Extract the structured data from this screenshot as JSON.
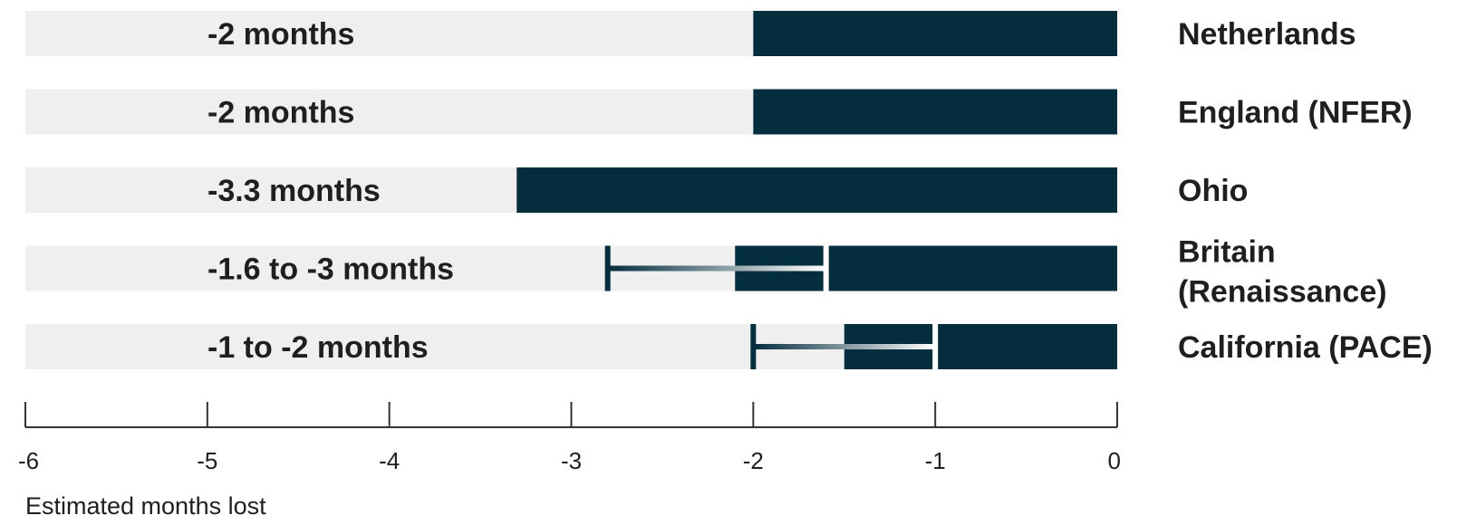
{
  "chart_data": {
    "type": "bar",
    "orientation": "horizontal",
    "xlabel": "Estimated months lost",
    "xlim": [
      -6,
      0
    ],
    "ticks": [
      "-6",
      "-5",
      "-4",
      "-3",
      "-2",
      "-1",
      "0"
    ],
    "tick_values": [
      -6,
      -5,
      -4,
      -3,
      -2,
      -1,
      0
    ],
    "grid": false,
    "colors": {
      "bar": "#042d3e",
      "track": "#efefef",
      "axis": "#333333"
    },
    "rows": [
      {
        "region": [
          "Netherlands"
        ],
        "range_label": "-2 months",
        "value": -2
      },
      {
        "region": [
          "England (NFER)"
        ],
        "range_label": "-2 months",
        "value": -2
      },
      {
        "region": [
          "Ohio"
        ],
        "range_label": "-3.3 months",
        "value": -3.3
      },
      {
        "region": [
          "Britain",
          "(Renaissance)"
        ],
        "range_label": "-1.6 to -3 months",
        "value": -2.1,
        "range": [
          -2.8,
          -1.6
        ]
      },
      {
        "region": [
          "California (PACE)"
        ],
        "range_label": "-1 to -2 months",
        "value": -1.5,
        "range": [
          -2,
          -1
        ]
      }
    ]
  }
}
